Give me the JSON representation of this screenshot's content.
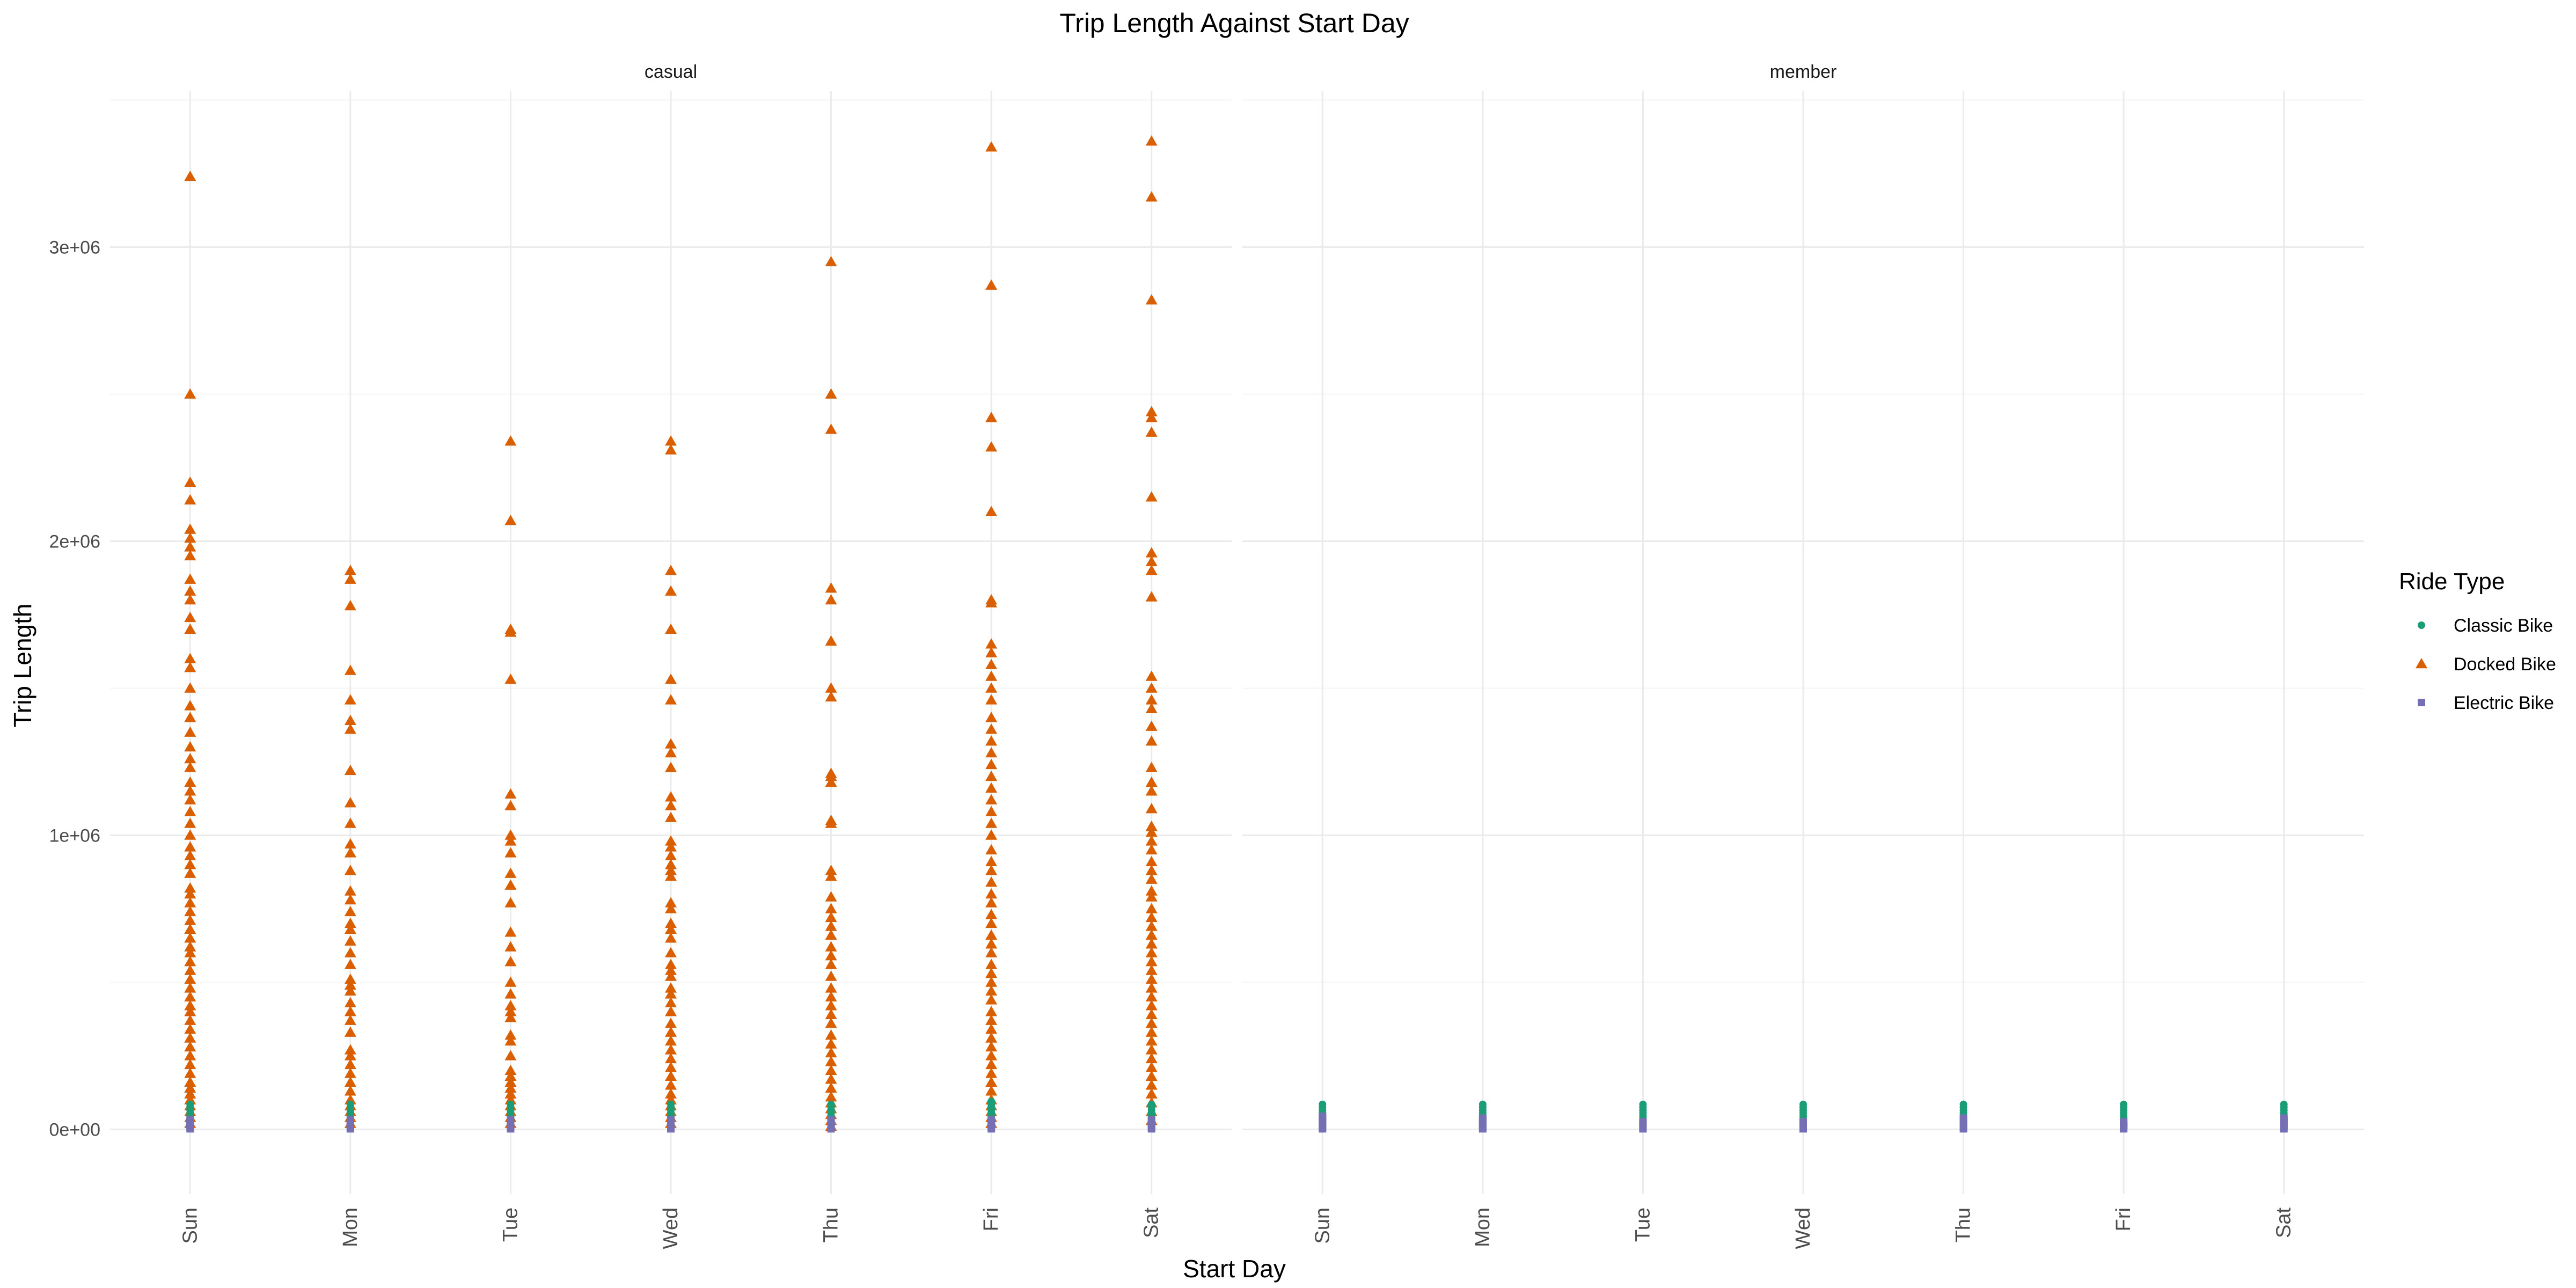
{
  "chart_data": {
    "type": "scatter",
    "title": "Trip Length Against Start Day",
    "xlabel": "Start Day",
    "ylabel": "Trip Length",
    "facets": [
      "casual",
      "member"
    ],
    "categories": [
      "Sun",
      "Mon",
      "Tue",
      "Wed",
      "Thu",
      "Fri",
      "Sat"
    ],
    "ylim": [
      -220000,
      3530000
    ],
    "yticks": [
      {
        "value": 0,
        "label": "0e+00"
      },
      {
        "value": 1000000,
        "label": "1e+06"
      },
      {
        "value": 2000000,
        "label": "2e+06"
      },
      {
        "value": 3000000,
        "label": "3e+06"
      }
    ],
    "grid": true,
    "legend": {
      "title": "Ride Type",
      "position": "right"
    },
    "series": [
      {
        "name": "Classic Bike",
        "shape": "circle",
        "color": "#1B9E77",
        "points": {
          "casual": {
            "Sun": [
              5000,
              15000,
              25000,
              35000,
              45000,
              55000,
              65000,
              75000,
              85000
            ],
            "Mon": [
              5000,
              15000,
              25000,
              35000,
              45000,
              55000,
              65000,
              75000,
              85000
            ],
            "Tue": [
              5000,
              15000,
              25000,
              35000,
              45000,
              55000,
              65000,
              75000,
              85000
            ],
            "Wed": [
              5000,
              15000,
              25000,
              35000,
              45000,
              55000,
              65000,
              75000,
              85000
            ],
            "Thu": [
              5000,
              15000,
              25000,
              35000,
              45000,
              55000,
              65000,
              75000,
              85000
            ],
            "Fri": [
              5000,
              15000,
              25000,
              35000,
              45000,
              55000,
              65000,
              75000,
              85000,
              95000
            ],
            "Sat": [
              5000,
              15000,
              25000,
              35000,
              45000,
              55000,
              65000,
              75000,
              85000
            ]
          },
          "member": {
            "Sun": [
              5000,
              15000,
              25000,
              35000,
              45000,
              55000,
              65000,
              75000,
              85000
            ],
            "Mon": [
              5000,
              15000,
              25000,
              35000,
              45000,
              55000,
              65000,
              75000,
              85000
            ],
            "Tue": [
              5000,
              15000,
              25000,
              35000,
              45000,
              55000,
              65000,
              75000,
              85000
            ],
            "Wed": [
              5000,
              15000,
              25000,
              35000,
              45000,
              55000,
              65000,
              75000,
              85000
            ],
            "Thu": [
              5000,
              15000,
              25000,
              35000,
              45000,
              55000,
              65000,
              75000,
              85000
            ],
            "Fri": [
              5000,
              15000,
              25000,
              35000,
              45000,
              55000,
              65000,
              75000,
              85000
            ],
            "Sat": [
              5000,
              15000,
              25000,
              35000,
              45000,
              55000,
              65000,
              75000,
              85000
            ]
          }
        }
      },
      {
        "name": "Docked Bike",
        "shape": "triangle",
        "color": "#D95F02",
        "points": {
          "casual": {
            "Sun": [
              3240000,
              2500000,
              2200000,
              2140000,
              2040000,
              2010000,
              1980000,
              1950000,
              1870000,
              1830000,
              1800000,
              1740000,
              1700000,
              1600000,
              1570000,
              1500000,
              1440000,
              1400000,
              1350000,
              1300000,
              1260000,
              1230000,
              1180000,
              1150000,
              1120000,
              1080000,
              1040000,
              1000000,
              960000,
              930000,
              900000,
              870000,
              820000,
              800000,
              770000,
              740000,
              710000,
              680000,
              650000,
              620000,
              600000,
              570000,
              540000,
              510000,
              480000,
              450000,
              420000,
              400000,
              370000,
              340000,
              310000,
              280000,
              250000,
              220000,
              190000,
              160000,
              140000,
              120000,
              100000,
              80000,
              60000,
              40000,
              20000
            ],
            "Mon": [
              1900000,
              1870000,
              1780000,
              1560000,
              1460000,
              1390000,
              1360000,
              1220000,
              1110000,
              1040000,
              970000,
              940000,
              880000,
              810000,
              780000,
              740000,
              700000,
              680000,
              640000,
              600000,
              560000,
              510000,
              490000,
              470000,
              430000,
              400000,
              370000,
              330000,
              270000,
              250000,
              220000,
              190000,
              160000,
              130000,
              100000,
              80000,
              60000,
              40000,
              20000
            ],
            "Tue": [
              2340000,
              2070000,
              1700000,
              1690000,
              1530000,
              1140000,
              1100000,
              1000000,
              980000,
              940000,
              870000,
              830000,
              770000,
              670000,
              620000,
              570000,
              500000,
              460000,
              420000,
              400000,
              380000,
              320000,
              300000,
              250000,
              200000,
              180000,
              160000,
              140000,
              120000,
              100000,
              80000,
              60000,
              40000,
              20000
            ],
            "Wed": [
              2340000,
              2310000,
              1900000,
              1830000,
              1700000,
              1530000,
              1460000,
              1310000,
              1280000,
              1230000,
              1130000,
              1100000,
              1060000,
              980000,
              960000,
              930000,
              900000,
              880000,
              860000,
              770000,
              750000,
              700000,
              680000,
              650000,
              600000,
              560000,
              540000,
              520000,
              480000,
              460000,
              430000,
              400000,
              360000,
              330000,
              300000,
              270000,
              240000,
              210000,
              180000,
              150000,
              120000,
              100000,
              80000,
              60000,
              40000,
              20000
            ],
            "Thu": [
              2950000,
              2500000,
              2380000,
              1840000,
              1800000,
              1660000,
              1500000,
              1470000,
              1210000,
              1200000,
              1180000,
              1050000,
              1040000,
              880000,
              860000,
              790000,
              750000,
              720000,
              690000,
              660000,
              620000,
              590000,
              560000,
              520000,
              480000,
              450000,
              420000,
              390000,
              360000,
              320000,
              290000,
              260000,
              230000,
              200000,
              170000,
              140000,
              110000,
              90000,
              70000,
              50000,
              30000,
              10000
            ],
            "Fri": [
              3340000,
              2870000,
              2420000,
              2320000,
              2100000,
              1800000,
              1790000,
              1650000,
              1620000,
              1580000,
              1540000,
              1500000,
              1460000,
              1400000,
              1360000,
              1320000,
              1280000,
              1240000,
              1200000,
              1160000,
              1120000,
              1080000,
              1040000,
              1000000,
              950000,
              910000,
              880000,
              840000,
              800000,
              770000,
              730000,
              700000,
              660000,
              630000,
              600000,
              560000,
              530000,
              500000,
              470000,
              440000,
              400000,
              370000,
              340000,
              310000,
              280000,
              250000,
              220000,
              190000,
              160000,
              130000,
              100000,
              80000,
              60000,
              40000,
              20000
            ],
            "Sat": [
              3360000,
              3170000,
              2820000,
              2440000,
              2420000,
              2370000,
              2150000,
              1960000,
              1930000,
              1900000,
              1810000,
              1540000,
              1500000,
              1460000,
              1430000,
              1370000,
              1320000,
              1230000,
              1180000,
              1150000,
              1090000,
              1030000,
              1010000,
              980000,
              950000,
              910000,
              880000,
              850000,
              810000,
              790000,
              750000,
              720000,
              690000,
              660000,
              630000,
              600000,
              570000,
              540000,
              510000,
              480000,
              450000,
              420000,
              390000,
              360000,
              330000,
              300000,
              270000,
              240000,
              210000,
              180000,
              150000,
              120000,
              90000,
              60000,
              30000
            ]
          },
          "member": {}
        }
      },
      {
        "name": "Electric Bike",
        "shape": "square",
        "color": "#7570B3",
        "points": {
          "casual": {
            "Sun": [
              2000,
              8000,
              14000,
              20000,
              26000,
              32000
            ],
            "Mon": [
              2000,
              8000,
              14000,
              20000,
              26000,
              32000
            ],
            "Tue": [
              2000,
              8000,
              14000,
              20000,
              26000,
              32000
            ],
            "Wed": [
              2000,
              8000,
              14000,
              20000,
              26000,
              32000
            ],
            "Thu": [
              2000,
              8000,
              14000,
              20000,
              26000,
              32000
            ],
            "Fri": [
              2000,
              8000,
              14000,
              20000,
              26000,
              32000
            ],
            "Sat": [
              2000,
              8000,
              14000,
              20000,
              26000,
              32000
            ]
          },
          "member": {
            "Sun": [
              2000,
              8000,
              14000,
              20000,
              26000,
              32000,
              38000,
              44000
            ],
            "Mon": [
              2000,
              8000,
              14000,
              20000,
              26000,
              32000,
              38000
            ],
            "Tue": [
              2000,
              8000,
              14000,
              20000,
              26000
            ],
            "Wed": [
              2000,
              8000,
              14000,
              20000,
              26000
            ],
            "Thu": [
              2000,
              8000,
              14000,
              20000,
              26000,
              32000,
              38000
            ],
            "Fri": [
              2000,
              8000,
              14000,
              20000,
              26000
            ],
            "Sat": [
              2000,
              8000,
              14000,
              20000,
              26000,
              32000,
              38000
            ]
          }
        }
      }
    ]
  }
}
